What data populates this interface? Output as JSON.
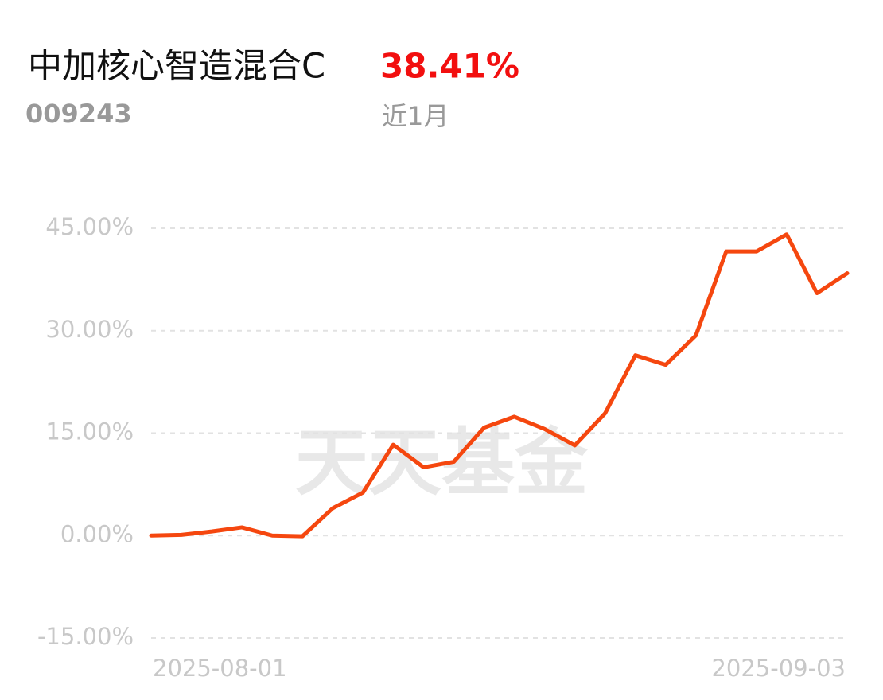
{
  "chart_data": {
    "type": "line",
    "title": "中加核心智造混合C",
    "return_label": "38.41%",
    "fund_code": "009243",
    "period": "近1月",
    "watermark": "天天基金",
    "categories": [
      "2025-08-01",
      null,
      null,
      null,
      null,
      null,
      null,
      null,
      null,
      null,
      null,
      null,
      null,
      null,
      null,
      null,
      null,
      null,
      null,
      null,
      null,
      null,
      null,
      "2025-09-03"
    ],
    "series": [
      {
        "name": "中加核心智造混合C",
        "color": "#f5470f",
        "values": [
          0,
          0.1,
          0.6,
          1.2,
          0,
          -0.1,
          4.0,
          6.3,
          13.3,
          10.0,
          10.8,
          15.8,
          17.4,
          15.6,
          13.2,
          17.9,
          26.4,
          25.0,
          29.3,
          41.6,
          41.6,
          44.1,
          35.5,
          38.41
        ]
      }
    ],
    "ylim": [
      -15,
      45
    ],
    "yticks": [
      {
        "value": 45,
        "label": "45.00%"
      },
      {
        "value": 30,
        "label": "30.00%"
      },
      {
        "value": 15,
        "label": "15.00%"
      },
      {
        "value": 0,
        "label": "0.00%"
      },
      {
        "value": -15,
        "label": "-15.00%"
      }
    ],
    "grid": true
  }
}
